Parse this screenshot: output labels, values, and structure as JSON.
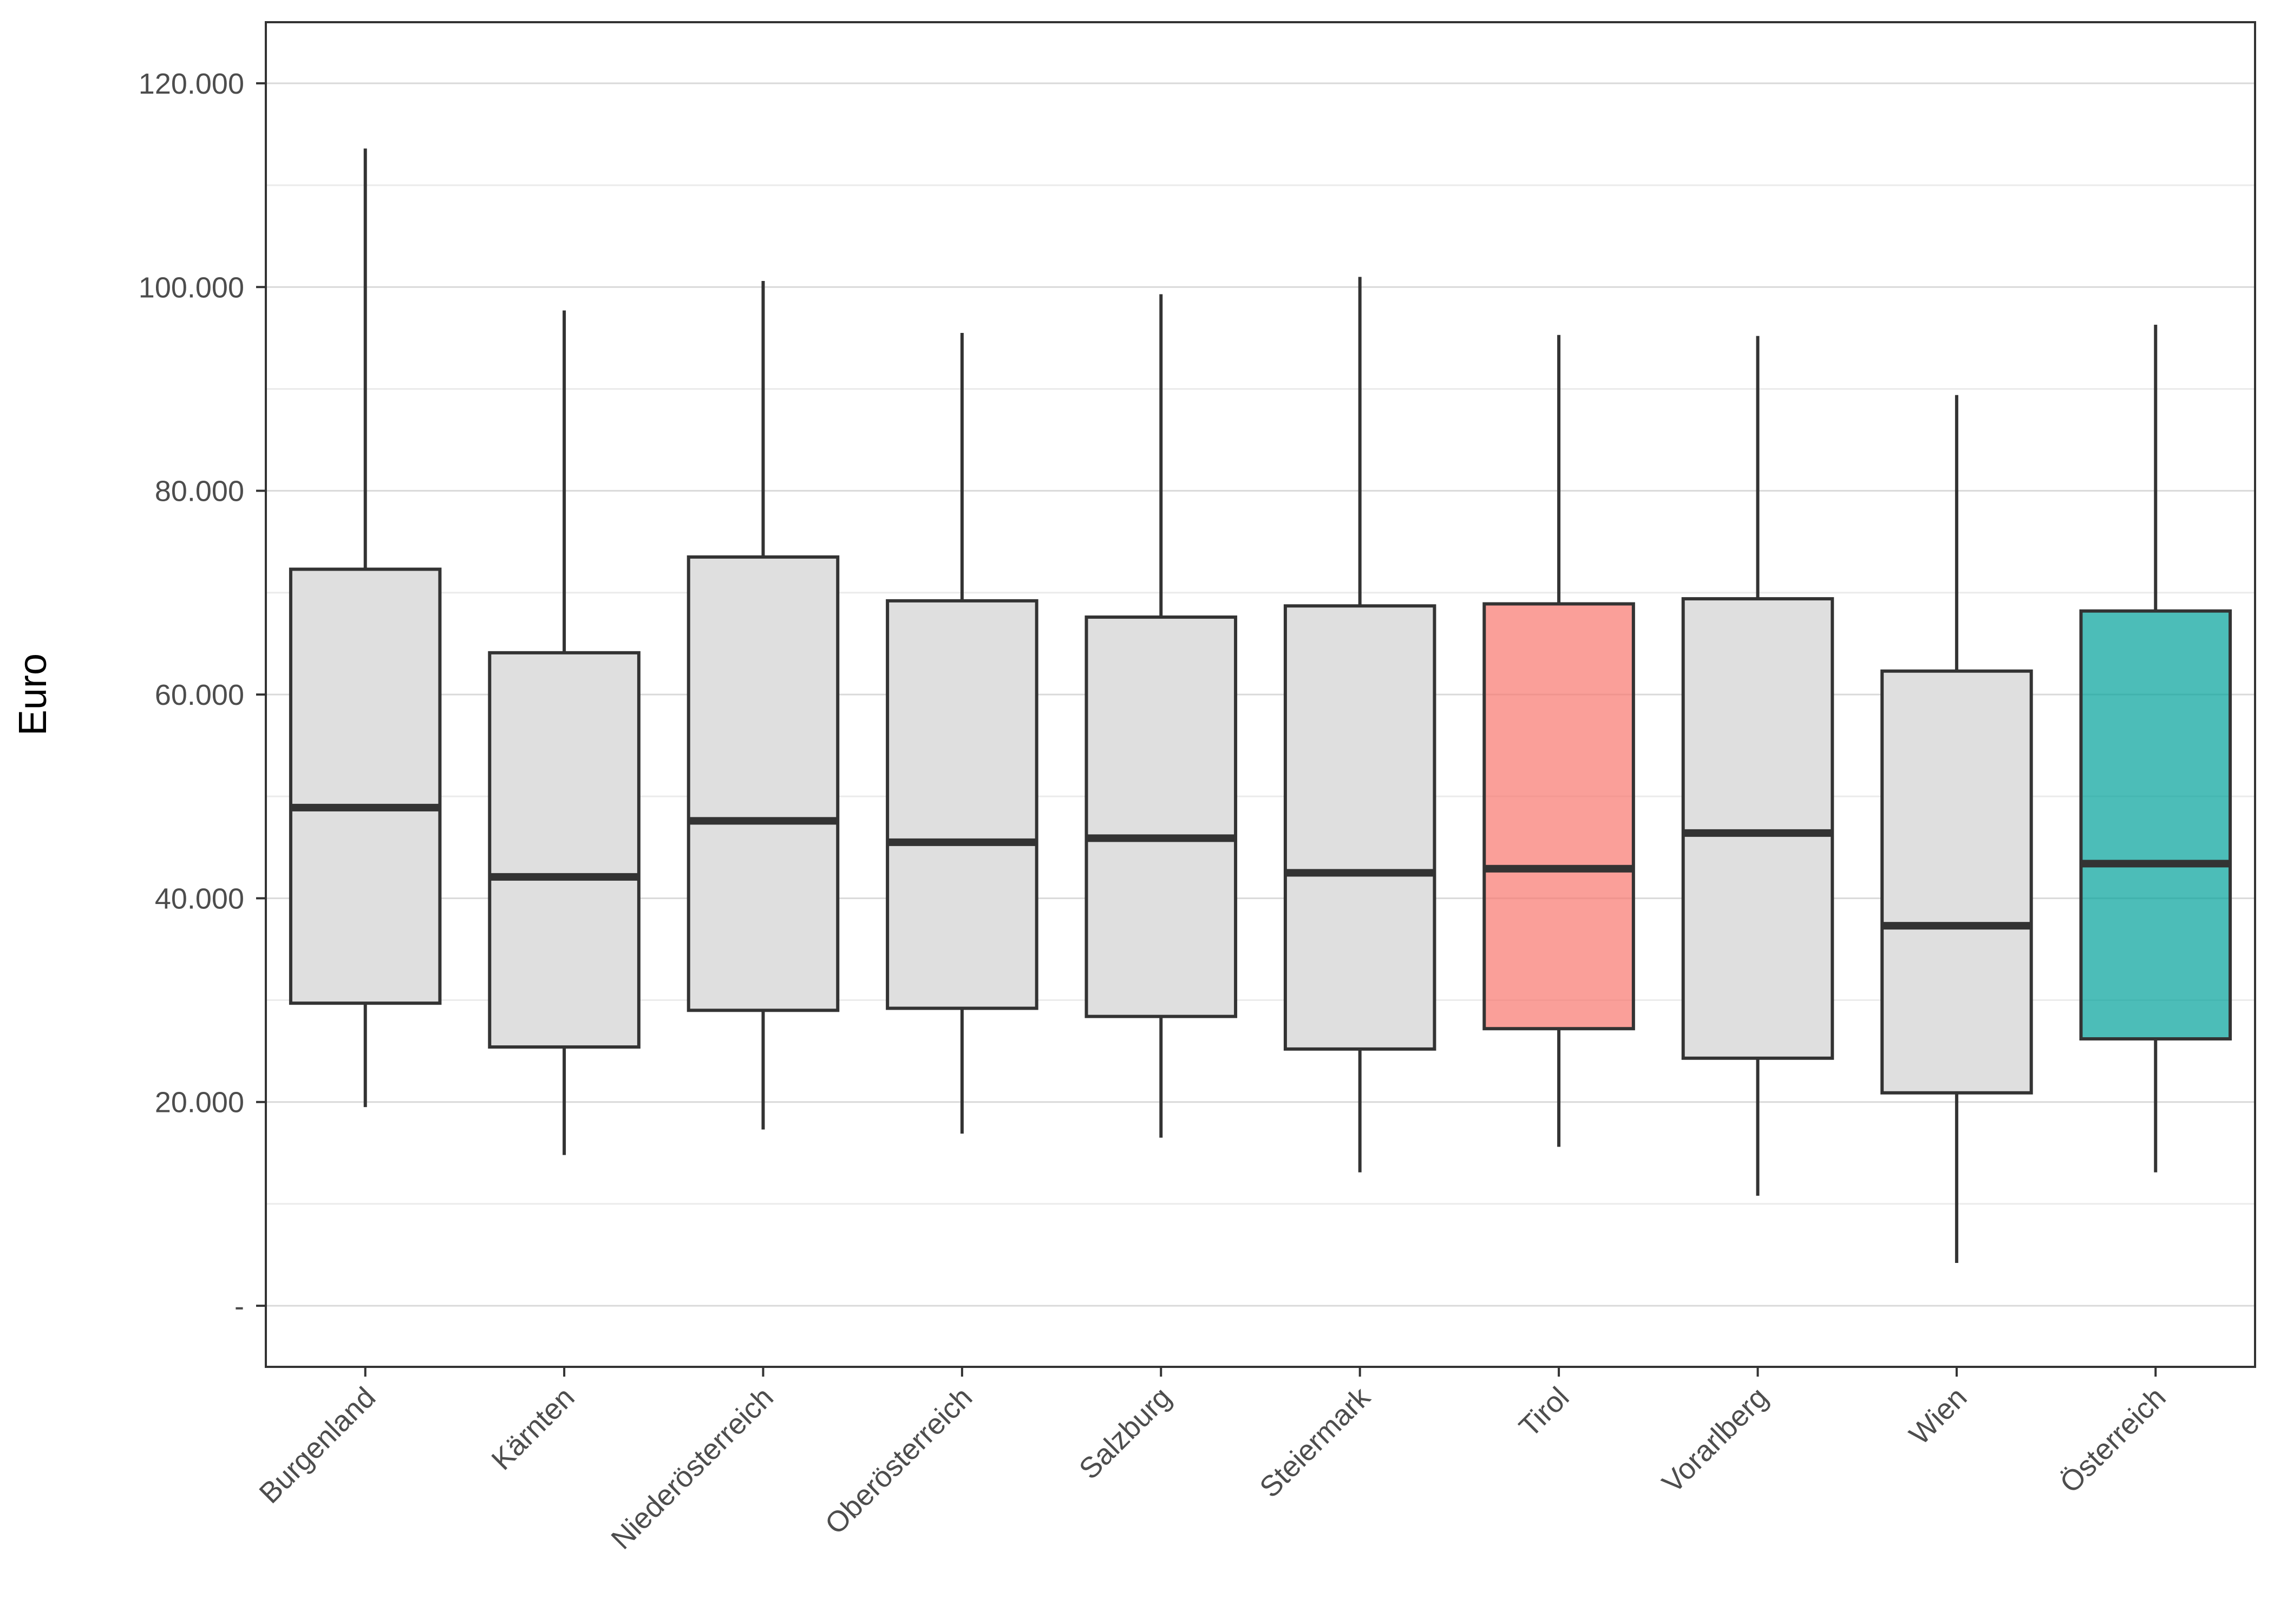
{
  "chart_data": {
    "type": "box",
    "title": "",
    "xlabel": "",
    "ylabel": "Euro",
    "ylim": [
      -6000,
      126000
    ],
    "grid": true,
    "y_ticks": [
      {
        "value": 0,
        "label": "-"
      },
      {
        "value": 20000,
        "label": "20.000"
      },
      {
        "value": 40000,
        "label": "40.000"
      },
      {
        "value": 60000,
        "label": "60.000"
      },
      {
        "value": 80000,
        "label": "80.000"
      },
      {
        "value": 100000,
        "label": "100.000"
      },
      {
        "value": 120000,
        "label": "120.000"
      }
    ],
    "categories": [
      "Burgenland",
      "Kärnten",
      "Niederösterreich",
      "Oberösterreich",
      "Salzburg",
      "Steiermark",
      "Tirol",
      "Vorarlberg",
      "Wien",
      "Österreich"
    ],
    "boxes": [
      {
        "category": "Burgenland",
        "min": 19500,
        "q1": 29700,
        "median": 48900,
        "q3": 72300,
        "max": 113600,
        "fill": "#dfdfdf"
      },
      {
        "category": "Kärnten",
        "min": 14800,
        "q1": 25400,
        "median": 42100,
        "q3": 64100,
        "max": 97700,
        "fill": "#dfdfdf"
      },
      {
        "category": "Niederösterreich",
        "min": 17300,
        "q1": 29000,
        "median": 47600,
        "q3": 73500,
        "max": 100600,
        "fill": "#dfdfdf"
      },
      {
        "category": "Oberösterreich",
        "min": 16900,
        "q1": 29200,
        "median": 45500,
        "q3": 69200,
        "max": 95500,
        "fill": "#dfdfdf"
      },
      {
        "category": "Salzburg",
        "min": 16500,
        "q1": 28400,
        "median": 45900,
        "q3": 67600,
        "max": 99300,
        "fill": "#dfdfdf"
      },
      {
        "category": "Steiermark",
        "min": 13100,
        "q1": 25200,
        "median": 42500,
        "q3": 68700,
        "max": 101000,
        "fill": "#dfdfdf"
      },
      {
        "category": "Tirol",
        "min": 15600,
        "q1": 27200,
        "median": 42900,
        "q3": 68900,
        "max": 95300,
        "fill": "#f8766d"
      },
      {
        "category": "Vorarlberg",
        "min": 10800,
        "q1": 24300,
        "median": 46400,
        "q3": 69400,
        "max": 95200,
        "fill": "#dfdfdf"
      },
      {
        "category": "Wien",
        "min": 4200,
        "q1": 20900,
        "median": 37300,
        "q3": 62300,
        "max": 89400,
        "fill": "#dfdfdf"
      },
      {
        "category": "Österreich",
        "min": 13100,
        "q1": 26200,
        "median": 43400,
        "q3": 68200,
        "max": 96300,
        "fill": "#00a19a"
      }
    ],
    "colors": {
      "box_default": "#dfdfdf",
      "highlight_tirol": "#f8766d",
      "highlight_oesterreich": "#00a19a",
      "line": "#333333",
      "grid": "#d9d9d9"
    }
  }
}
